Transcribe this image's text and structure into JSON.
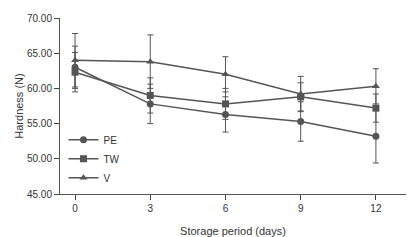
{
  "chart_data": {
    "type": "line",
    "x": [
      0,
      3,
      6,
      9,
      12
    ],
    "series": [
      {
        "name": "PE",
        "color": "#555555",
        "marker": "circle",
        "line_style": "solid",
        "values": [
          63.0,
          57.8,
          56.3,
          55.3,
          53.2
        ],
        "errors": [
          3.0,
          2.8,
          2.5,
          2.8,
          3.8
        ]
      },
      {
        "name": "TW",
        "color": "#555555",
        "marker": "square",
        "line_style": "solid",
        "values": [
          62.3,
          59.0,
          57.8,
          58.8,
          57.2
        ],
        "errors": [
          2.8,
          2.5,
          2.2,
          2.0,
          2.0
        ]
      },
      {
        "name": "V",
        "color": "#555555",
        "marker": "triangle-up",
        "line_style": "solid",
        "values": [
          64.0,
          63.8,
          62.0,
          59.2,
          60.3
        ],
        "errors": [
          3.8,
          3.8,
          2.5,
          2.5,
          2.5
        ]
      }
    ],
    "xlabel": "Storage period (days)",
    "ylabel": "Hardness (N)",
    "xlim": [
      -0.6,
      13.2
    ],
    "xticks": [
      0,
      3,
      6,
      9,
      12
    ],
    "ylim": [
      45.0,
      70.0
    ],
    "yticks": [
      {
        "value": 45.0,
        "label": "45.00"
      },
      {
        "value": 50.0,
        "label": "50.00"
      },
      {
        "value": 55.0,
        "label": "55.00"
      },
      {
        "value": 60.0,
        "label": "60.00"
      },
      {
        "value": 65.0,
        "label": "65.00"
      },
      {
        "value": 70.0,
        "label": "70.00"
      }
    ],
    "legend": "lower left",
    "grid": false
  }
}
